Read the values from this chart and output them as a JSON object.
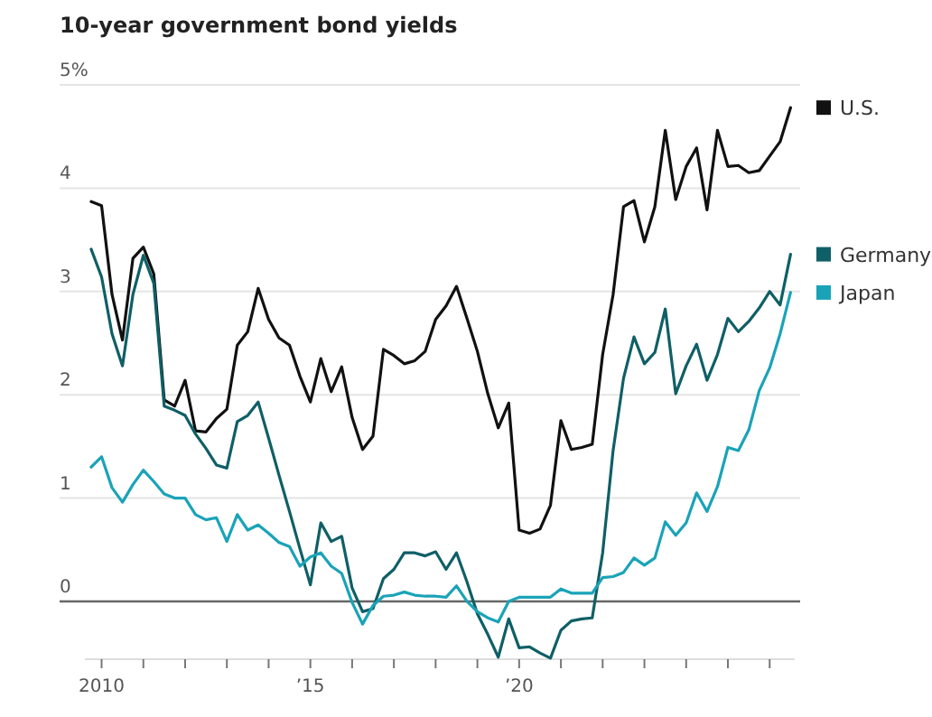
{
  "chart_data": {
    "type": "line",
    "title": "10-year government bond yields",
    "x": [
      2009.75,
      2010,
      2010.25,
      2010.5,
      2010.75,
      2011,
      2011.25,
      2011.5,
      2011.75,
      2012,
      2012.25,
      2012.5,
      2012.75,
      2013,
      2013.25,
      2013.5,
      2013.75,
      2014,
      2014.25,
      2014.5,
      2014.75,
      2015,
      2015.25,
      2015.5,
      2015.75,
      2016,
      2016.25,
      2016.5,
      2016.75,
      2017,
      2017.25,
      2017.5,
      2017.75,
      2018,
      2018.25,
      2018.5,
      2018.75,
      2019,
      2019.25,
      2019.5,
      2019.75,
      2020,
      2020.25,
      2020.5,
      2020.75,
      2021,
      2021.25,
      2021.5,
      2021.75,
      2022,
      2022.25,
      2022.5,
      2022.75,
      2023,
      2023.25,
      2023.5,
      2023.75,
      2024,
      2024.25,
      2024.5,
      2024.75,
      2025,
      2025.25,
      2025.5,
      2025.75,
      2026,
      2026.25,
      2026.5
    ],
    "series": [
      {
        "name": "U.S.",
        "color": "#111111",
        "values": [
          3.87,
          3.83,
          2.97,
          2.53,
          3.32,
          3.43,
          3.17,
          1.95,
          1.89,
          2.14,
          1.65,
          1.64,
          1.77,
          1.86,
          2.48,
          2.61,
          3.03,
          2.73,
          2.55,
          2.48,
          2.18,
          1.93,
          2.35,
          2.03,
          2.27,
          1.78,
          1.47,
          1.6,
          2.44,
          2.38,
          2.3,
          2.33,
          2.42,
          2.73,
          2.86,
          3.05,
          2.74,
          2.42,
          2.01,
          1.68,
          1.92,
          0.69,
          0.66,
          0.7,
          0.93,
          1.75,
          1.47,
          1.49,
          1.52,
          2.39,
          2.97,
          3.82,
          3.88,
          3.48,
          3.82,
          4.56,
          3.89,
          4.21,
          4.39,
          3.79,
          4.56,
          4.21,
          4.22,
          4.15,
          4.17,
          4.31,
          4.45,
          4.78
        ]
      },
      {
        "name": "Germany",
        "color": "#0f5f66",
        "values": [
          3.41,
          3.14,
          2.59,
          2.28,
          2.97,
          3.35,
          3.08,
          1.89,
          1.85,
          1.8,
          1.62,
          1.48,
          1.32,
          1.29,
          1.74,
          1.8,
          1.93,
          1.58,
          1.22,
          0.87,
          0.51,
          0.16,
          0.76,
          0.58,
          0.63,
          0.13,
          -0.1,
          -0.07,
          0.22,
          0.31,
          0.47,
          0.47,
          0.44,
          0.48,
          0.31,
          0.47,
          0.19,
          -0.12,
          -0.32,
          -0.54,
          -0.17,
          -0.45,
          -0.44,
          -0.5,
          -0.55,
          -0.28,
          -0.19,
          -0.17,
          -0.16,
          0.47,
          1.46,
          2.16,
          2.56,
          2.3,
          2.41,
          2.83,
          2.01,
          2.28,
          2.49,
          2.14,
          2.39,
          2.74,
          2.61,
          2.71,
          2.84,
          3.0,
          2.87,
          3.36
        ]
      },
      {
        "name": "Japan",
        "color": "#1aa3b8",
        "values": [
          1.3,
          1.4,
          1.1,
          0.96,
          1.13,
          1.27,
          1.16,
          1.04,
          1.0,
          1.0,
          0.84,
          0.79,
          0.81,
          0.58,
          0.84,
          0.69,
          0.74,
          0.66,
          0.57,
          0.53,
          0.34,
          0.43,
          0.47,
          0.34,
          0.27,
          -0.01,
          -0.22,
          -0.04,
          0.05,
          0.06,
          0.09,
          0.06,
          0.05,
          0.05,
          0.04,
          0.15,
          0,
          -0.1,
          -0.16,
          -0.2,
          0,
          0.04,
          0.04,
          0.04,
          0.04,
          0.12,
          0.08,
          0.08,
          0.08,
          0.23,
          0.24,
          0.28,
          0.42,
          0.35,
          0.42,
          0.77,
          0.64,
          0.76,
          1.05,
          0.87,
          1.11,
          1.49,
          1.46,
          1.66,
          2.04,
          2.26,
          2.59,
          2.99
        ]
      }
    ],
    "xlim": [
      2009.6,
      2026.6
    ],
    "xticks": [
      {
        "value": 2010,
        "label": "2010"
      },
      {
        "value": 2011,
        "label": null
      },
      {
        "value": 2012,
        "label": null
      },
      {
        "value": 2013,
        "label": null
      },
      {
        "value": 2014,
        "label": null
      },
      {
        "value": 2015,
        "label": "’15"
      },
      {
        "value": 2016,
        "label": null
      },
      {
        "value": 2017,
        "label": null
      },
      {
        "value": 2018,
        "label": null
      },
      {
        "value": 2019,
        "label": null
      },
      {
        "value": 2020,
        "label": "’20"
      },
      {
        "value": 2021,
        "label": null
      },
      {
        "value": 2022,
        "label": null
      },
      {
        "value": 2023,
        "label": null
      },
      {
        "value": 2024,
        "label": null
      },
      {
        "value": 2025,
        "label": null
      },
      {
        "value": 2026,
        "label": null
      }
    ],
    "ylim": [
      -0.56,
      5
    ],
    "yticks": [
      0,
      1,
      2,
      3,
      4,
      {
        "value": 5,
        "label": "5%"
      }
    ],
    "ref_lines": [
      {
        "axis": "y",
        "value": 0,
        "color": "#666666"
      }
    ],
    "grid": "y",
    "legend": "right",
    "line_style": "solid",
    "marker": "none"
  }
}
